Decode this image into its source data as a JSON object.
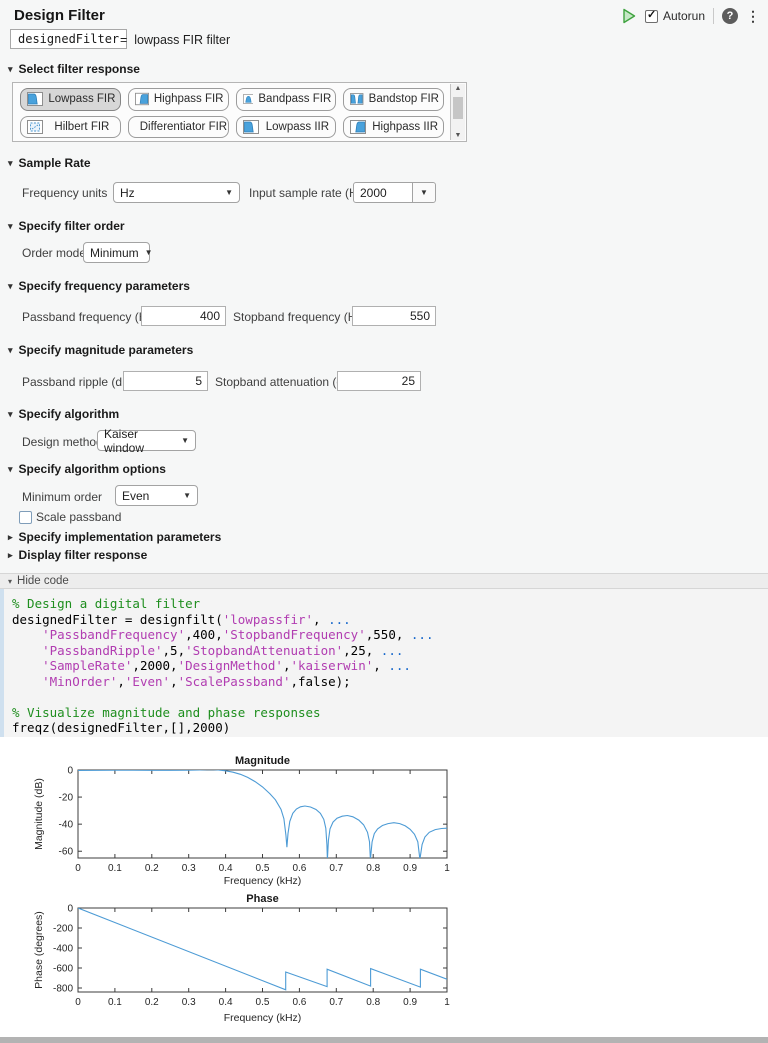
{
  "header": {
    "title": "Design Filter",
    "run_icon": "run-play-icon",
    "autorun_label": "Autorun",
    "autorun_checked": true,
    "help_icon": "?",
    "menu_icon": "⋮"
  },
  "output_line": {
    "variable": "designedFilter",
    "equals": "=",
    "description": "lowpass FIR filter"
  },
  "filter_response": {
    "header": "Select filter response",
    "buttons": [
      {
        "label": "Lowpass FIR",
        "icon": "lowpass-fir-icon",
        "selected": true
      },
      {
        "label": "Highpass FIR",
        "icon": "highpass-fir-icon",
        "selected": false
      },
      {
        "label": "Bandpass FIR",
        "icon": "bandpass-fir-icon",
        "selected": false
      },
      {
        "label": "Bandstop FIR",
        "icon": "bandstop-fir-icon",
        "selected": false
      },
      {
        "label": "Hilbert FIR",
        "icon": "hilbert-fir-icon",
        "selected": false
      },
      {
        "label": "Differentiator FIR",
        "icon": "differentiator-fir-icon",
        "selected": false
      },
      {
        "label": "Lowpass IIR",
        "icon": "lowpass-iir-icon",
        "selected": false
      },
      {
        "label": "Highpass IIR",
        "icon": "highpass-iir-icon",
        "selected": false
      }
    ]
  },
  "sample_rate": {
    "header": "Sample Rate",
    "frequency_units_label": "Frequency units",
    "frequency_units_value": "Hz",
    "input_rate_label": "Input sample rate (Hz)",
    "input_rate_value": "2000"
  },
  "filter_order": {
    "header": "Specify filter order",
    "order_mode_label": "Order mode",
    "order_mode_value": "Minimum"
  },
  "frequency_params": {
    "header": "Specify frequency parameters",
    "passband_label": "Passband frequency (Hz)",
    "passband_value": "400",
    "stopband_label": "Stopband frequency (Hz)",
    "stopband_value": "550"
  },
  "magnitude_params": {
    "header": "Specify magnitude parameters",
    "ripple_label": "Passband ripple (dB)",
    "ripple_value": "5",
    "attenuation_label": "Stopband attenuation (dB)",
    "attenuation_value": "25"
  },
  "algorithm": {
    "header": "Specify algorithm",
    "design_method_label": "Design method",
    "design_method_value": "Kaiser window"
  },
  "algorithm_options": {
    "header": "Specify algorithm options",
    "min_order_label": "Minimum order",
    "min_order_value": "Even",
    "scale_passband_label": "Scale passband",
    "scale_passband_checked": false
  },
  "collapsed_sections": [
    {
      "label": "Specify implementation parameters"
    },
    {
      "label": "Display filter response"
    }
  ],
  "code_panel": {
    "toggle_label": "Hide code",
    "lines": [
      [
        {
          "t": "% Design a digital filter",
          "c": "comment"
        }
      ],
      [
        {
          "t": "designedFilter = designfilt(",
          "c": "plain"
        },
        {
          "t": "'lowpassfir'",
          "c": "string"
        },
        {
          "t": ", ",
          "c": "plain"
        },
        {
          "t": "...",
          "c": "cont"
        }
      ],
      [
        {
          "t": "    ",
          "c": "plain"
        },
        {
          "t": "'PassbandFrequency'",
          "c": "string"
        },
        {
          "t": ",400,",
          "c": "plain"
        },
        {
          "t": "'StopbandFrequency'",
          "c": "string"
        },
        {
          "t": ",550, ",
          "c": "plain"
        },
        {
          "t": "...",
          "c": "cont"
        }
      ],
      [
        {
          "t": "    ",
          "c": "plain"
        },
        {
          "t": "'PassbandRipple'",
          "c": "string"
        },
        {
          "t": ",5,",
          "c": "plain"
        },
        {
          "t": "'StopbandAttenuation'",
          "c": "string"
        },
        {
          "t": ",25, ",
          "c": "plain"
        },
        {
          "t": "...",
          "c": "cont"
        }
      ],
      [
        {
          "t": "    ",
          "c": "plain"
        },
        {
          "t": "'SampleRate'",
          "c": "string"
        },
        {
          "t": ",2000,",
          "c": "plain"
        },
        {
          "t": "'DesignMethod'",
          "c": "string"
        },
        {
          "t": ",",
          "c": "plain"
        },
        {
          "t": "'kaiserwin'",
          "c": "string"
        },
        {
          "t": ", ",
          "c": "plain"
        },
        {
          "t": "...",
          "c": "cont"
        }
      ],
      [
        {
          "t": "    ",
          "c": "plain"
        },
        {
          "t": "'MinOrder'",
          "c": "string"
        },
        {
          "t": ",",
          "c": "plain"
        },
        {
          "t": "'Even'",
          "c": "string"
        },
        {
          "t": ",",
          "c": "plain"
        },
        {
          "t": "'ScalePassband'",
          "c": "string"
        },
        {
          "t": ",false);",
          "c": "plain"
        }
      ],
      [],
      [
        {
          "t": "% Visualize magnitude and phase responses",
          "c": "comment"
        }
      ],
      [
        {
          "t": "freqz(designedFilter,[],2000)",
          "c": "plain"
        }
      ]
    ]
  },
  "chart_data": [
    {
      "type": "line",
      "title": "Magnitude",
      "xlabel": "Frequency (kHz)",
      "ylabel": "Magnitude (dB)",
      "xlim": [
        0,
        1
      ],
      "ylim": [
        -65,
        0
      ],
      "xticks": [
        0,
        0.1,
        0.2,
        0.3,
        0.4,
        0.5,
        0.6,
        0.7,
        0.8,
        0.9,
        1
      ],
      "xtick_labels": [
        "0",
        "0.1",
        "0.2",
        "0.3",
        "0.4",
        "0.5",
        "0.6",
        "0.7",
        "0.8",
        "0.9",
        "1"
      ],
      "yticks": [
        0,
        -20,
        -40,
        -60
      ],
      "ytick_labels": [
        "0",
        "-20",
        "-40",
        "-60"
      ],
      "grid": false,
      "legend": null,
      "line_color": "#4D9BD5",
      "series": [
        {
          "name": "magnitude response",
          "points": [
            [
              0,
              -0.3
            ],
            [
              0.05,
              -0.2
            ],
            [
              0.1,
              -0.15
            ],
            [
              0.15,
              -0.15
            ],
            [
              0.2,
              -0.2
            ],
            [
              0.25,
              -0.25
            ],
            [
              0.3,
              -0.15
            ],
            [
              0.33,
              0.1
            ],
            [
              0.36,
              0.3
            ],
            [
              0.38,
              0.1
            ],
            [
              0.4,
              -0.6
            ],
            [
              0.42,
              -1.6
            ],
            [
              0.44,
              -3.2
            ],
            [
              0.46,
              -5.5
            ],
            [
              0.48,
              -8.6
            ],
            [
              0.5,
              -12.5
            ],
            [
              0.52,
              -17.5
            ],
            [
              0.535,
              -22
            ],
            [
              0.55,
              -29
            ],
            [
              0.558,
              -36
            ],
            [
              0.5635,
              -48
            ],
            [
              0.566,
              -57
            ],
            [
              0.569,
              -47
            ],
            [
              0.574,
              -38
            ],
            [
              0.582,
              -32
            ],
            [
              0.592,
              -28.8
            ],
            [
              0.603,
              -27.2
            ],
            [
              0.615,
              -26.6
            ],
            [
              0.63,
              -27.3
            ],
            [
              0.645,
              -29.2
            ],
            [
              0.657,
              -32
            ],
            [
              0.666,
              -36.5
            ],
            [
              0.6715,
              -43
            ],
            [
              0.6745,
              -55
            ],
            [
              0.676,
              -66
            ],
            [
              0.6785,
              -52
            ],
            [
              0.683,
              -43.5
            ],
            [
              0.691,
              -38.5
            ],
            [
              0.702,
              -35.6
            ],
            [
              0.716,
              -34.1
            ],
            [
              0.73,
              -33.6
            ],
            [
              0.745,
              -34.6
            ],
            [
              0.761,
              -37
            ],
            [
              0.774,
              -40.5
            ],
            [
              0.7845,
              -46
            ],
            [
              0.79,
              -53
            ],
            [
              0.7925,
              -66
            ],
            [
              0.797,
              -53
            ],
            [
              0.803,
              -47
            ],
            [
              0.812,
              -43.5
            ],
            [
              0.825,
              -41
            ],
            [
              0.84,
              -39.6
            ],
            [
              0.856,
              -38.9
            ],
            [
              0.872,
              -39.6
            ],
            [
              0.887,
              -41.3
            ],
            [
              0.9,
              -43.8
            ],
            [
              0.912,
              -47.5
            ],
            [
              0.921,
              -53
            ],
            [
              0.9265,
              -66
            ],
            [
              0.9325,
              -55
            ],
            [
              0.94,
              -49.5
            ],
            [
              0.952,
              -46
            ],
            [
              0.968,
              -44
            ],
            [
              0.985,
              -43.2
            ],
            [
              1,
              -43
            ]
          ]
        }
      ]
    },
    {
      "type": "line",
      "title": "Phase",
      "xlabel": "Frequency (kHz)",
      "ylabel": "Phase (degrees)",
      "xlim": [
        0,
        1
      ],
      "ylim": [
        -840,
        0
      ],
      "xticks": [
        0,
        0.1,
        0.2,
        0.3,
        0.4,
        0.5,
        0.6,
        0.7,
        0.8,
        0.9,
        1
      ],
      "xtick_labels": [
        "0",
        "0.1",
        "0.2",
        "0.3",
        "0.4",
        "0.5",
        "0.6",
        "0.7",
        "0.8",
        "0.9",
        "1"
      ],
      "yticks": [
        0,
        -200,
        -400,
        -600,
        -800
      ],
      "ytick_labels": [
        "0",
        "-200",
        "-400",
        "-600",
        "-800"
      ],
      "grid": false,
      "legend": null,
      "line_color": "#4D9BD5",
      "series": [
        {
          "name": "phase response",
          "points": [
            [
              0,
              0
            ],
            [
              0.563,
              -818
            ],
            [
              0.563,
              -640
            ],
            [
              0.675,
              -786
            ],
            [
              0.675,
              -612
            ],
            [
              0.793,
              -781
            ],
            [
              0.793,
              -606
            ],
            [
              0.928,
              -791
            ],
            [
              0.928,
              -612
            ],
            [
              1,
              -712
            ]
          ]
        }
      ]
    }
  ]
}
